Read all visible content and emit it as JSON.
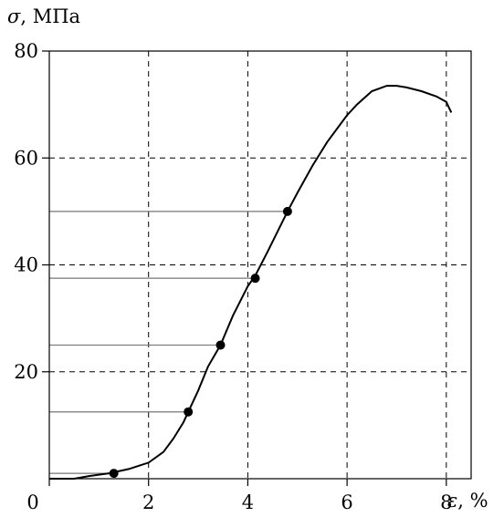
{
  "chart_data": {
    "type": "line",
    "title": "",
    "xlabel": {
      "symbol": "ε",
      "unit": ", %"
    },
    "ylabel": {
      "symbol": "σ",
      "unit": ", МПа"
    },
    "xlim": [
      0,
      8.5
    ],
    "ylim": [
      0,
      80
    ],
    "x_ticks": [
      0,
      2,
      4,
      6,
      8
    ],
    "y_ticks": [
      20,
      40,
      60,
      80
    ],
    "x_tick_labels": [
      "0",
      "2",
      "4",
      "6",
      "8"
    ],
    "y_tick_labels": [
      "20",
      "40",
      "60",
      "80"
    ],
    "grid": true,
    "series": [
      {
        "x": [
          0,
          0.5,
          0.8,
          1.2,
          1.6,
          2.0,
          2.3,
          2.5,
          2.7,
          2.8,
          3.0,
          3.2,
          3.45,
          3.7,
          4.0,
          4.15,
          4.4,
          4.8,
          5.0,
          5.3,
          5.6,
          6.0,
          6.2,
          6.5,
          6.8,
          7.0,
          7.2,
          7.5,
          7.8,
          8.0,
          8.05,
          8.1
        ],
        "y": [
          0,
          0,
          0.5,
          1.0,
          1.8,
          3.0,
          5.0,
          7.5,
          10.5,
          12.5,
          16.5,
          21.0,
          25.0,
          30.5,
          36.0,
          38.0,
          42.5,
          50.0,
          53.5,
          58.5,
          63.0,
          68.0,
          70.0,
          72.5,
          73.5,
          73.5,
          73.2,
          72.5,
          71.5,
          70.5,
          69.5,
          68.5
        ]
      }
    ],
    "points": [
      {
        "x": 1.3,
        "y": 1.0
      },
      {
        "x": 2.8,
        "y": 12.5
      },
      {
        "x": 3.45,
        "y": 25.0
      },
      {
        "x": 4.15,
        "y": 37.5
      },
      {
        "x": 4.8,
        "y": 50.0
      }
    ]
  }
}
